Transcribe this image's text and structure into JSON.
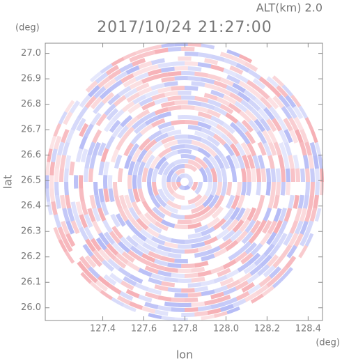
{
  "chart_data": {
    "type": "radar-image",
    "title": "2017/10/24 21:27:00",
    "altitude_label": "ALT(km) 2.0",
    "x_label": "lon",
    "y_label": "lat",
    "x_unit": "(deg)",
    "y_unit": "(deg)",
    "xlim": [
      127.12,
      128.47
    ],
    "ylim": [
      25.95,
      27.04
    ],
    "xticks": [
      127.4,
      127.6,
      127.8,
      {
        "value": 128,
        "label": "128.0"
      },
      128.2,
      128.4
    ],
    "yticks": [
      {
        "value": 26,
        "label": "26.0"
      },
      26.1,
      26.2,
      26.3,
      26.4,
      26.5,
      26.6,
      26.7,
      26.8,
      26.9,
      {
        "value": 27,
        "label": "27.0"
      }
    ]
  }
}
